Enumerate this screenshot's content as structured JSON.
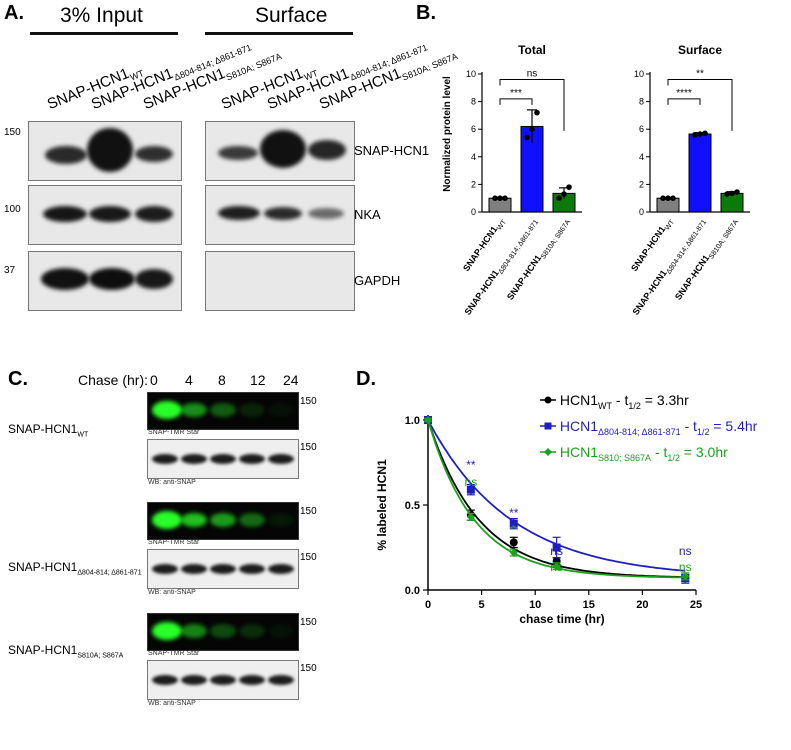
{
  "panels": {
    "A": "A.",
    "B": "B.",
    "C": "C.",
    "D": "D."
  },
  "panelA": {
    "input_header": "3% Input",
    "surface_header": "Surface",
    "lanes": [
      {
        "name": "SNAP-HCN1",
        "sub": "WT"
      },
      {
        "name": "SNAP-HCN1",
        "sub": "Δ804-814; Δ861-871"
      },
      {
        "name": "SNAP-HCN1",
        "sub": "S810A; S867A"
      }
    ],
    "proteins": [
      "SNAP-HCN1",
      "NKA",
      "GAPDH"
    ],
    "mw": [
      "150",
      "100",
      "37"
    ]
  },
  "panelB": {
    "charts": [
      {
        "title": "Total",
        "significance": [
          "***",
          "ns"
        ]
      },
      {
        "title": "Surface",
        "significance": [
          "****",
          "**"
        ]
      }
    ],
    "xlabels": [
      {
        "name": "SNAP-HCN1",
        "sub": "WT"
      },
      {
        "name": "SNAP-HCN1",
        "sub": "Δ804-814; Δ861-871"
      },
      {
        "name": "SNAP-HCN1",
        "sub": "S810A; S867A"
      }
    ]
  },
  "chart_data": [
    {
      "type": "bar",
      "title": "Total",
      "ylabel": "Normalized protein level",
      "categories": [
        "SNAP-HCN1WT",
        "SNAP-HCN1Δ804-814; Δ861-871",
        "SNAP-HCN1S810A; S867A"
      ],
      "values": [
        1.0,
        6.2,
        1.35
      ],
      "errors": [
        0.05,
        1.2,
        0.4
      ],
      "points": [
        [
          1,
          1,
          1
        ],
        [
          5.4,
          6.0,
          7.2
        ],
        [
          1.0,
          1.3,
          1.8
        ]
      ],
      "colors": [
        "#7f7f7f",
        "#1010ff",
        "#0a7a0a"
      ],
      "ylim": [
        0,
        10
      ],
      "yticks": [
        0,
        2,
        4,
        6,
        8,
        10
      ]
    },
    {
      "type": "bar",
      "title": "Surface",
      "ylabel": "",
      "categories": [
        "SNAP-HCN1WT",
        "SNAP-HCN1Δ804-814; Δ861-871",
        "SNAP-HCN1S810A; S867A"
      ],
      "values": [
        1.0,
        5.65,
        1.35
      ],
      "errors": [
        0.03,
        0.1,
        0.12
      ],
      "points": [
        [
          1,
          1,
          1
        ],
        [
          5.6,
          5.65,
          5.7
        ],
        [
          1.3,
          1.35,
          1.45
        ]
      ],
      "colors": [
        "#7f7f7f",
        "#1010ff",
        "#0a7a0a"
      ],
      "ylim": [
        0,
        10
      ],
      "yticks": [
        0,
        2,
        4,
        6,
        8,
        10
      ]
    },
    {
      "type": "line",
      "xlabel": "chase time (hr)",
      "ylabel": "% labeled HCN1",
      "xlim": [
        0,
        25
      ],
      "ylim": [
        0,
        1.0
      ],
      "xticks": [
        0,
        5,
        10,
        15,
        20,
        25
      ],
      "yticks": [
        0.0,
        0.5,
        1.0
      ],
      "series": [
        {
          "name": "HCN1WT - t1/2 = 3.3hr",
          "color": "#000000",
          "marker": "circle",
          "x": [
            0,
            4,
            8,
            12,
            24
          ],
          "y": [
            1.0,
            0.44,
            0.28,
            0.17,
            0.07
          ],
          "err": [
            0.01,
            0.03,
            0.03,
            0.02,
            0.02
          ],
          "half_life": 3.3
        },
        {
          "name": "HCN1Δ804-814; Δ861-871 - t1/2 = 5.4hr",
          "color": "#1f1fbf",
          "marker": "square",
          "x": [
            0,
            4,
            8,
            12,
            24
          ],
          "y": [
            1.0,
            0.59,
            0.39,
            0.25,
            0.07
          ],
          "err": [
            0.01,
            0.03,
            0.03,
            0.06,
            0.03
          ],
          "half_life": 5.4
        },
        {
          "name": "HCN1S810; S867A - t1/2 = 3.0hr",
          "color": "#1aa31a",
          "marker": "diamond",
          "x": [
            0,
            4,
            8,
            12,
            24
          ],
          "y": [
            1.0,
            0.43,
            0.22,
            0.14,
            0.08
          ],
          "err": [
            0.01,
            0.02,
            0.02,
            0.02,
            0.02
          ],
          "half_life": 3.0
        }
      ],
      "annotations": [
        {
          "x": 4,
          "text": "**",
          "color": "#1f1fbf",
          "row": 0
        },
        {
          "x": 4,
          "text": "ns",
          "color": "#1aa31a",
          "row": 1
        },
        {
          "x": 8,
          "text": "**",
          "color": "#1f1fbf",
          "row": 0
        },
        {
          "x": 8,
          "text": "*",
          "color": "#1aa31a",
          "row": 1
        },
        {
          "x": 12,
          "text": "ns",
          "color": "#1f1fbf",
          "row": 0
        },
        {
          "x": 12,
          "text": "ns",
          "color": "#1aa31a",
          "row": 1
        },
        {
          "x": 24,
          "text": "ns",
          "color": "#1f1fbf",
          "row": 0
        },
        {
          "x": 24,
          "text": "ns",
          "color": "#1aa31a",
          "row": 1
        }
      ]
    }
  ],
  "panelC": {
    "chase_label": "Chase (hr):",
    "timepoints": [
      "0",
      "4",
      "8",
      "12",
      "24"
    ],
    "gel_caption": "SNAP-TMR Star",
    "wb_caption": "WB: anti-SNAP",
    "mw": "150",
    "conditions": [
      {
        "name": "SNAP-HCN1",
        "sub": "WT",
        "green": [
          1.0,
          0.55,
          0.35,
          0.12,
          0.03
        ]
      },
      {
        "name": "SNAP-HCN1",
        "sub": "Δ804-814; Δ861-871",
        "green": [
          1.0,
          0.75,
          0.6,
          0.4,
          0.08
        ]
      },
      {
        "name": "SNAP-HCN1",
        "sub": "S810A; S867A",
        "green": [
          1.0,
          0.5,
          0.28,
          0.16,
          0.02
        ]
      }
    ]
  },
  "panelD": {
    "legend": [
      {
        "pre": "HCN1",
        "sub": "WT",
        "mid": " - t",
        "sub2": "1/2",
        "post": " = 3.3hr"
      },
      {
        "pre": "HCN1",
        "sub": "Δ804-814; Δ861-871",
        "mid": " - t",
        "sub2": "1/2",
        "post": " = 5.4hr"
      },
      {
        "pre": "HCN1",
        "sub": "S810; S867A",
        "mid": " - t",
        "sub2": "1/2",
        "post": " = 3.0hr"
      }
    ]
  }
}
